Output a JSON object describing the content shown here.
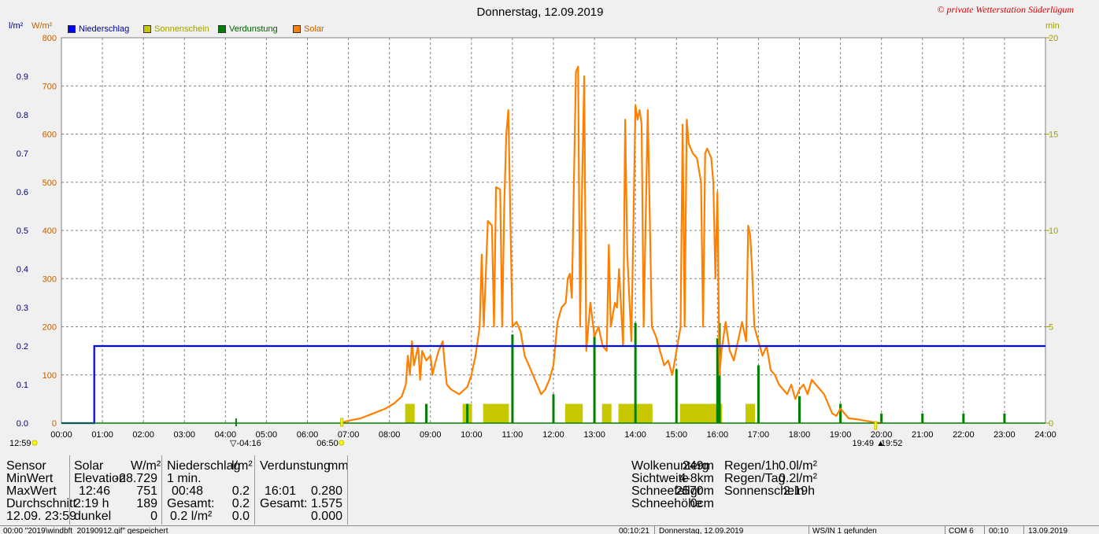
{
  "title": "Donnerstag, 12.09.2019",
  "copyright": "© private Wetterstation Süderlügum",
  "units": {
    "left_outer": "l/m²",
    "left_inner": "W/m²",
    "right": "min"
  },
  "legend": [
    {
      "label": "Niederschlag",
      "color": "#0000ff"
    },
    {
      "label": "Sonnenschein",
      "color": "#c8c800"
    },
    {
      "label": "Verdunstung",
      "color": "#008000"
    },
    {
      "label": "Solar",
      "color": "#ff8000"
    }
  ],
  "chart_data": {
    "type": "line",
    "x_axis": {
      "ticks": [
        "00:00",
        "01:00",
        "02:00",
        "03:00",
        "04:00",
        "05:00",
        "06:00",
        "07:00",
        "08:00",
        "09:00",
        "10:00",
        "11:00",
        "12:00",
        "13:00",
        "14:00",
        "15:00",
        "16:00",
        "17:00",
        "18:00",
        "19:00",
        "20:00",
        "21:00",
        "22:00",
        "23:00",
        "24:00"
      ],
      "range": [
        0,
        24
      ]
    },
    "y_precip": {
      "label": "l/m²",
      "ticks": [
        "0.0",
        "0.1",
        "0.2",
        "0.3",
        "0.4",
        "0.5",
        "0.6",
        "0.7",
        "0.8",
        "0.9"
      ],
      "range": [
        0,
        1.0
      ]
    },
    "y_solar": {
      "label": "W/m²",
      "ticks": [
        "0",
        "100",
        "200",
        "300",
        "400",
        "500",
        "600",
        "700",
        "800"
      ],
      "range": [
        0,
        800
      ]
    },
    "y_minutes": {
      "label": "min",
      "ticks": [
        "0",
        "5",
        "10",
        "15",
        "20"
      ],
      "range": [
        0,
        20
      ]
    },
    "series": [
      {
        "name": "Niederschlag",
        "color": "#0000ff",
        "points": [
          [
            0,
            0
          ],
          [
            0.8,
            0
          ],
          [
            0.8,
            0.2
          ],
          [
            24,
            0.2
          ]
        ]
      },
      {
        "name": "Solar",
        "color": "#ff8000",
        "points": [
          [
            6.8,
            0
          ],
          [
            7.0,
            5
          ],
          [
            7.3,
            10
          ],
          [
            7.6,
            20
          ],
          [
            7.9,
            30
          ],
          [
            8.1,
            40
          ],
          [
            8.3,
            55
          ],
          [
            8.4,
            80
          ],
          [
            8.45,
            140
          ],
          [
            8.5,
            100
          ],
          [
            8.55,
            170
          ],
          [
            8.6,
            120
          ],
          [
            8.7,
            160
          ],
          [
            8.75,
            90
          ],
          [
            8.8,
            150
          ],
          [
            8.9,
            130
          ],
          [
            9.0,
            140
          ],
          [
            9.05,
            100
          ],
          [
            9.1,
            120
          ],
          [
            9.2,
            150
          ],
          [
            9.3,
            170
          ],
          [
            9.35,
            120
          ],
          [
            9.4,
            80
          ],
          [
            9.5,
            70
          ],
          [
            9.7,
            60
          ],
          [
            9.9,
            75
          ],
          [
            10.0,
            100
          ],
          [
            10.1,
            140
          ],
          [
            10.2,
            200
          ],
          [
            10.25,
            350
          ],
          [
            10.3,
            200
          ],
          [
            10.4,
            420
          ],
          [
            10.5,
            410
          ],
          [
            10.55,
            200
          ],
          [
            10.6,
            490
          ],
          [
            10.7,
            485
          ],
          [
            10.75,
            200
          ],
          [
            10.8,
            450
          ],
          [
            10.85,
            600
          ],
          [
            10.9,
            650
          ],
          [
            11.0,
            200
          ],
          [
            11.1,
            210
          ],
          [
            11.2,
            190
          ],
          [
            11.3,
            140
          ],
          [
            11.4,
            120
          ],
          [
            11.5,
            100
          ],
          [
            11.6,
            80
          ],
          [
            11.7,
            60
          ],
          [
            11.8,
            70
          ],
          [
            11.9,
            90
          ],
          [
            12.0,
            120
          ],
          [
            12.1,
            210
          ],
          [
            12.2,
            240
          ],
          [
            12.3,
            250
          ],
          [
            12.35,
            300
          ],
          [
            12.4,
            310
          ],
          [
            12.45,
            260
          ],
          [
            12.5,
            500
          ],
          [
            12.55,
            730
          ],
          [
            12.6,
            740
          ],
          [
            12.65,
            200
          ],
          [
            12.7,
            500
          ],
          [
            12.75,
            720
          ],
          [
            12.8,
            150
          ],
          [
            12.9,
            250
          ],
          [
            13.0,
            180
          ],
          [
            13.1,
            200
          ],
          [
            13.2,
            160
          ],
          [
            13.3,
            150
          ],
          [
            13.35,
            370
          ],
          [
            13.4,
            200
          ],
          [
            13.5,
            250
          ],
          [
            13.55,
            240
          ],
          [
            13.6,
            320
          ],
          [
            13.7,
            160
          ],
          [
            13.75,
            630
          ],
          [
            13.8,
            350
          ],
          [
            13.9,
            170
          ],
          [
            14.0,
            660
          ],
          [
            14.05,
            630
          ],
          [
            14.1,
            650
          ],
          [
            14.15,
            620
          ],
          [
            14.2,
            200
          ],
          [
            14.3,
            650
          ],
          [
            14.4,
            200
          ],
          [
            14.5,
            180
          ],
          [
            14.6,
            150
          ],
          [
            14.7,
            120
          ],
          [
            14.8,
            130
          ],
          [
            14.9,
            100
          ],
          [
            15.0,
            150
          ],
          [
            15.1,
            200
          ],
          [
            15.15,
            620
          ],
          [
            15.2,
            200
          ],
          [
            15.25,
            630
          ],
          [
            15.3,
            580
          ],
          [
            15.4,
            560
          ],
          [
            15.5,
            550
          ],
          [
            15.6,
            500
          ],
          [
            15.65,
            200
          ],
          [
            15.7,
            560
          ],
          [
            15.75,
            570
          ],
          [
            15.8,
            560
          ],
          [
            15.85,
            550
          ],
          [
            15.9,
            500
          ],
          [
            15.95,
            300
          ],
          [
            16.0,
            480
          ],
          [
            16.05,
            100
          ],
          [
            16.1,
            150
          ],
          [
            16.2,
            210
          ],
          [
            16.3,
            150
          ],
          [
            16.4,
            130
          ],
          [
            16.5,
            170
          ],
          [
            16.6,
            210
          ],
          [
            16.7,
            170
          ],
          [
            16.75,
            410
          ],
          [
            16.8,
            390
          ],
          [
            16.85,
            310
          ],
          [
            16.9,
            200
          ],
          [
            17.0,
            170
          ],
          [
            17.1,
            140
          ],
          [
            17.2,
            160
          ],
          [
            17.3,
            110
          ],
          [
            17.4,
            100
          ],
          [
            17.5,
            80
          ],
          [
            17.6,
            70
          ],
          [
            17.7,
            60
          ],
          [
            17.8,
            80
          ],
          [
            17.9,
            50
          ],
          [
            18.0,
            70
          ],
          [
            18.1,
            80
          ],
          [
            18.2,
            60
          ],
          [
            18.3,
            90
          ],
          [
            18.4,
            80
          ],
          [
            18.5,
            70
          ],
          [
            18.6,
            60
          ],
          [
            18.7,
            40
          ],
          [
            18.8,
            20
          ],
          [
            18.9,
            15
          ],
          [
            19.0,
            30
          ],
          [
            19.1,
            20
          ],
          [
            19.2,
            10
          ],
          [
            19.4,
            8
          ],
          [
            19.6,
            5
          ],
          [
            19.8,
            2
          ],
          [
            20.0,
            0
          ]
        ]
      },
      {
        "name": "Verdunstung",
        "color": "#008000",
        "bars_min": [
          [
            8.9,
            1
          ],
          [
            9.9,
            1
          ],
          [
            11.0,
            4.6
          ],
          [
            12.0,
            1.5
          ],
          [
            13.0,
            4.6
          ],
          [
            14.0,
            5.2
          ],
          [
            15.0,
            2.8
          ],
          [
            16.0,
            4.4
          ],
          [
            16.05,
            5.2
          ],
          [
            17.0,
            3.0
          ],
          [
            18.0,
            1.4
          ],
          [
            19.0,
            1.0
          ],
          [
            20.0,
            0.5
          ],
          [
            21.0,
            0.5
          ],
          [
            22.0,
            0.5
          ],
          [
            23.0,
            0.5
          ]
        ]
      },
      {
        "name": "Sonnenschein",
        "color": "#c8c800",
        "bars_min": [
          [
            8.5,
            1
          ],
          [
            9.9,
            1
          ],
          [
            10.4,
            1
          ],
          [
            10.6,
            1
          ],
          [
            10.8,
            1
          ],
          [
            12.4,
            1
          ],
          [
            12.6,
            1
          ],
          [
            13.3,
            1
          ],
          [
            13.7,
            1
          ],
          [
            13.9,
            1
          ],
          [
            14.1,
            1
          ],
          [
            14.3,
            1
          ],
          [
            15.2,
            1
          ],
          [
            15.4,
            1
          ],
          [
            15.6,
            1
          ],
          [
            15.8,
            1
          ],
          [
            16.0,
            1
          ],
          [
            16.8,
            1
          ]
        ]
      }
    ]
  },
  "markers": {
    "sunrise_time": "06:50",
    "sunset_time": "19:52",
    "left_time": "12:59",
    "twilight_begin": "04:16",
    "twilight_end": "19:49"
  },
  "panel": {
    "sensor": {
      "header": "Sensor",
      "rows": [
        "MinWert",
        "MaxWert",
        "Durchschnitt",
        "12.09.  23:59"
      ]
    },
    "solar": {
      "header": "Solar",
      "unit": "W/m²",
      "rows": [
        [
          "Elevation",
          "-28.729"
        ],
        [
          "12:46",
          "751"
        ],
        [
          "2:19 h",
          "189"
        ],
        [
          "dunkel",
          "0"
        ]
      ]
    },
    "precip": {
      "header": "Niederschlag",
      "unit": "l/m²",
      "rows": [
        [
          "1 min.",
          ""
        ],
        [
          "00:48",
          "0.2"
        ],
        [
          "Gesamt:",
          "0.2"
        ],
        [
          "0.2 l/m²",
          "0.0"
        ]
      ]
    },
    "evap": {
      "header": "Verdunstung",
      "unit": "mm",
      "rows": [
        [
          "",
          ""
        ],
        [
          "16:01",
          "0.280"
        ],
        [
          "Gesamt:",
          "1.575"
        ],
        [
          "",
          "0.000"
        ]
      ]
    },
    "extra1": [
      [
        "Wolkenunterg",
        "249m"
      ],
      [
        "Sichtweite",
        "4-8km"
      ],
      [
        "Schneefallgr",
        "2570m"
      ],
      [
        "Schneehöhe",
        "0cm"
      ]
    ],
    "extra2": [
      [
        "Regen/1h",
        "0.0l/m²"
      ],
      [
        "Regen/Tag",
        "0.2l/m²"
      ],
      [
        "Sonnenschein",
        "2:19h"
      ]
    ]
  },
  "status": {
    "file": "00:00  \"2019\\windbft_20190912.gif\"  gespeichert",
    "time1": "00:10:21",
    "date": "Donnerstag, 12.09.2019",
    "ws": "WS/IN 1 gefunden",
    "com": "COM 6",
    "time2": "00:10",
    "date2": "13.09.2019"
  }
}
